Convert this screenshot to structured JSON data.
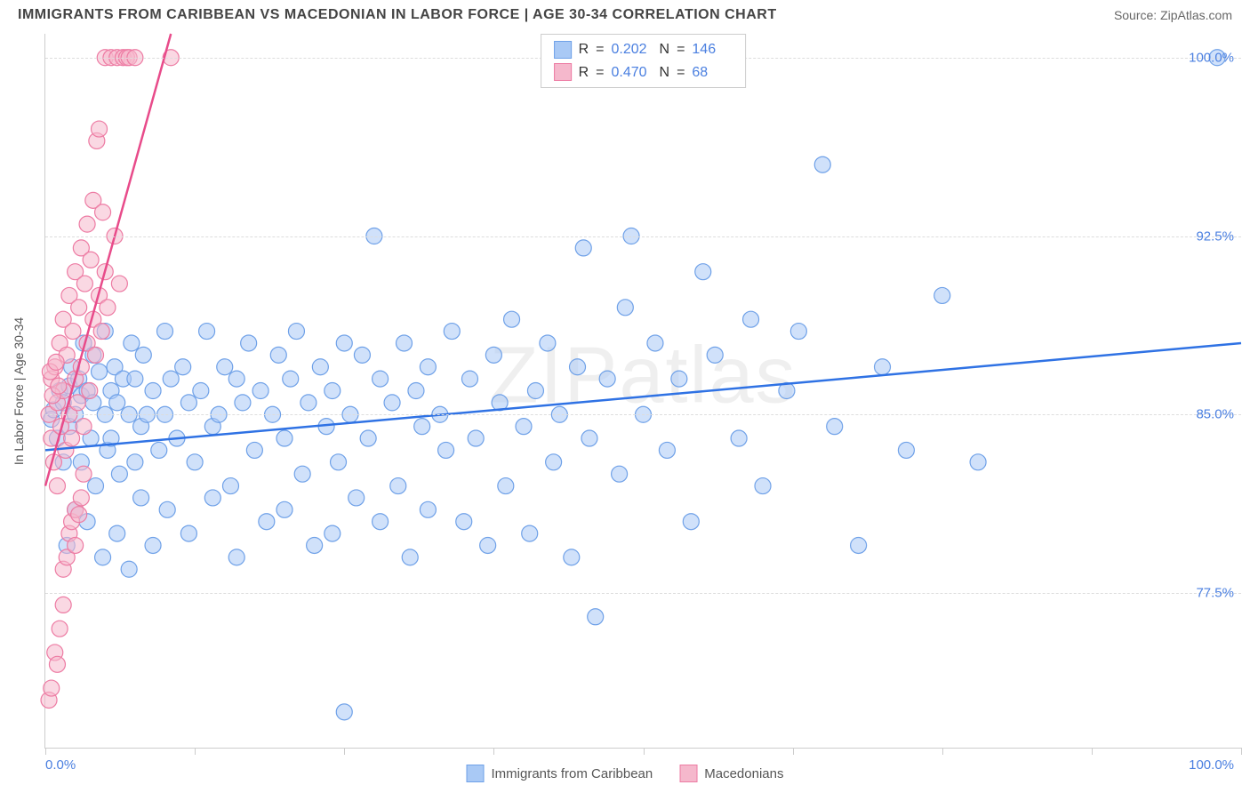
{
  "title": "IMMIGRANTS FROM CARIBBEAN VS MACEDONIAN IN LABOR FORCE | AGE 30-34 CORRELATION CHART",
  "source": "Source: ZipAtlas.com",
  "watermark": "ZIPatlas",
  "ylabel": "In Labor Force | Age 30-34",
  "chart": {
    "type": "scatter",
    "xlim": [
      0,
      100
    ],
    "ylim": [
      71,
      101
    ],
    "x_tick_positions": [
      0,
      12.5,
      25,
      37.5,
      50,
      62.5,
      75,
      87.5,
      100
    ],
    "x_tick_labels": {
      "0": "0.0%",
      "100": "100.0%"
    },
    "y_gridlines": [
      77.5,
      85.0,
      92.5,
      100.0
    ],
    "y_tick_labels": [
      "77.5%",
      "85.0%",
      "92.5%",
      "100.0%"
    ],
    "background_color": "#ffffff",
    "grid_color": "#dddddd",
    "marker_radius": 9,
    "marker_stroke_width": 1.2,
    "trend_line_width": 2.5
  },
  "series": [
    {
      "name": "Immigrants from Caribbean",
      "fill": "#a9c9f5",
      "stroke": "#6fa1e8",
      "fill_opacity": 0.55,
      "R": "0.202",
      "N": "146",
      "trend": {
        "x1": 0,
        "y1": 83.5,
        "x2": 100,
        "y2": 88.0,
        "color": "#2f72e4"
      },
      "points": [
        [
          0.5,
          84.8
        ],
        [
          0.7,
          85.2
        ],
        [
          1,
          84.0
        ],
        [
          1.2,
          86.0
        ],
        [
          1.5,
          83.0
        ],
        [
          1.5,
          85.5
        ],
        [
          1.8,
          79.5
        ],
        [
          2,
          86.2
        ],
        [
          2,
          84.5
        ],
        [
          2.2,
          87.0
        ],
        [
          2.5,
          85.0
        ],
        [
          2.5,
          81.0
        ],
        [
          2.8,
          86.5
        ],
        [
          3,
          85.8
        ],
        [
          3,
          83.0
        ],
        [
          3.2,
          88.0
        ],
        [
          3.5,
          80.5
        ],
        [
          3.5,
          86.0
        ],
        [
          3.8,
          84.0
        ],
        [
          4,
          85.5
        ],
        [
          4,
          87.5
        ],
        [
          4.2,
          82.0
        ],
        [
          4.5,
          86.8
        ],
        [
          4.8,
          79.0
        ],
        [
          5,
          85.0
        ],
        [
          5,
          88.5
        ],
        [
          5.2,
          83.5
        ],
        [
          5.5,
          86.0
        ],
        [
          5.5,
          84.0
        ],
        [
          5.8,
          87.0
        ],
        [
          6,
          80.0
        ],
        [
          6,
          85.5
        ],
        [
          6.2,
          82.5
        ],
        [
          6.5,
          86.5
        ],
        [
          7,
          78.5
        ],
        [
          7,
          85.0
        ],
        [
          7.2,
          88.0
        ],
        [
          7.5,
          83.0
        ],
        [
          7.5,
          86.5
        ],
        [
          8,
          84.5
        ],
        [
          8,
          81.5
        ],
        [
          8.2,
          87.5
        ],
        [
          8.5,
          85.0
        ],
        [
          9,
          79.5
        ],
        [
          9,
          86.0
        ],
        [
          9.5,
          83.5
        ],
        [
          10,
          88.5
        ],
        [
          10,
          85.0
        ],
        [
          10.2,
          81.0
        ],
        [
          10.5,
          86.5
        ],
        [
          11,
          84.0
        ],
        [
          11.5,
          87.0
        ],
        [
          12,
          80.0
        ],
        [
          12,
          85.5
        ],
        [
          12.5,
          83.0
        ],
        [
          13,
          86.0
        ],
        [
          13.5,
          88.5
        ],
        [
          14,
          84.5
        ],
        [
          14,
          81.5
        ],
        [
          14.5,
          85.0
        ],
        [
          15,
          87.0
        ],
        [
          15.5,
          82.0
        ],
        [
          16,
          86.5
        ],
        [
          16,
          79.0
        ],
        [
          16.5,
          85.5
        ],
        [
          17,
          88.0
        ],
        [
          17.5,
          83.5
        ],
        [
          18,
          86.0
        ],
        [
          18.5,
          80.5
        ],
        [
          19,
          85.0
        ],
        [
          19.5,
          87.5
        ],
        [
          20,
          84.0
        ],
        [
          20,
          81.0
        ],
        [
          20.5,
          86.5
        ],
        [
          21,
          88.5
        ],
        [
          21.5,
          82.5
        ],
        [
          22,
          85.5
        ],
        [
          22.5,
          79.5
        ],
        [
          23,
          87.0
        ],
        [
          23.5,
          84.5
        ],
        [
          24,
          80.0
        ],
        [
          24,
          86.0
        ],
        [
          24.5,
          83.0
        ],
        [
          25,
          88.0
        ],
        [
          25,
          72.5
        ],
        [
          25.5,
          85.0
        ],
        [
          26,
          81.5
        ],
        [
          26.5,
          87.5
        ],
        [
          27,
          84.0
        ],
        [
          27.5,
          92.5
        ],
        [
          28,
          80.5
        ],
        [
          28,
          86.5
        ],
        [
          29,
          85.5
        ],
        [
          29.5,
          82.0
        ],
        [
          30,
          88.0
        ],
        [
          30.5,
          79.0
        ],
        [
          31,
          86.0
        ],
        [
          31.5,
          84.5
        ],
        [
          32,
          81.0
        ],
        [
          32,
          87.0
        ],
        [
          33,
          85.0
        ],
        [
          33.5,
          83.5
        ],
        [
          34,
          88.5
        ],
        [
          35,
          80.5
        ],
        [
          35.5,
          86.5
        ],
        [
          36,
          84.0
        ],
        [
          37,
          79.5
        ],
        [
          37.5,
          87.5
        ],
        [
          38,
          85.5
        ],
        [
          38.5,
          82.0
        ],
        [
          39,
          89.0
        ],
        [
          40,
          84.5
        ],
        [
          40.5,
          80.0
        ],
        [
          41,
          86.0
        ],
        [
          42,
          88.0
        ],
        [
          42.5,
          83.0
        ],
        [
          43,
          85.0
        ],
        [
          44,
          79.0
        ],
        [
          44.5,
          87.0
        ],
        [
          45,
          92.0
        ],
        [
          45.5,
          84.0
        ],
        [
          46,
          76.5
        ],
        [
          47,
          86.5
        ],
        [
          48,
          82.5
        ],
        [
          48.5,
          89.5
        ],
        [
          49,
          92.5
        ],
        [
          50,
          85.0
        ],
        [
          51,
          88.0
        ],
        [
          52,
          83.5
        ],
        [
          53,
          86.5
        ],
        [
          54,
          80.5
        ],
        [
          55,
          91.0
        ],
        [
          56,
          87.5
        ],
        [
          58,
          84.0
        ],
        [
          59,
          89.0
        ],
        [
          60,
          82.0
        ],
        [
          62,
          86.0
        ],
        [
          63,
          88.5
        ],
        [
          65,
          95.5
        ],
        [
          66,
          84.5
        ],
        [
          68,
          79.5
        ],
        [
          70,
          87.0
        ],
        [
          72,
          83.5
        ],
        [
          75,
          90.0
        ],
        [
          78,
          83.0
        ],
        [
          98,
          100.0
        ]
      ]
    },
    {
      "name": "Macedonians",
      "fill": "#f5b8cc",
      "stroke": "#ed7ba3",
      "fill_opacity": 0.55,
      "R": "0.470",
      "N": "68",
      "trend": {
        "x1": 0,
        "y1": 82.0,
        "x2": 10.5,
        "y2": 101.0,
        "color": "#e84b8a"
      },
      "points": [
        [
          0.3,
          85.0
        ],
        [
          0.5,
          84.0
        ],
        [
          0.5,
          86.5
        ],
        [
          0.7,
          83.0
        ],
        [
          0.8,
          87.0
        ],
        [
          1.0,
          85.5
        ],
        [
          1.0,
          82.0
        ],
        [
          1.2,
          88.0
        ],
        [
          1.3,
          84.5
        ],
        [
          1.5,
          86.0
        ],
        [
          1.5,
          89.0
        ],
        [
          1.7,
          83.5
        ],
        [
          1.8,
          87.5
        ],
        [
          2.0,
          85.0
        ],
        [
          2.0,
          90.0
        ],
        [
          2.2,
          84.0
        ],
        [
          2.3,
          88.5
        ],
        [
          2.5,
          86.5
        ],
        [
          2.5,
          91.0
        ],
        [
          2.7,
          85.5
        ],
        [
          2.8,
          89.5
        ],
        [
          3.0,
          87.0
        ],
        [
          3.0,
          92.0
        ],
        [
          3.2,
          84.5
        ],
        [
          3.3,
          90.5
        ],
        [
          3.5,
          88.0
        ],
        [
          3.5,
          93.0
        ],
        [
          3.7,
          86.0
        ],
        [
          3.8,
          91.5
        ],
        [
          4.0,
          89.0
        ],
        [
          4.0,
          94.0
        ],
        [
          4.2,
          87.5
        ],
        [
          4.3,
          96.5
        ],
        [
          4.5,
          90.0
        ],
        [
          4.5,
          97.0
        ],
        [
          4.7,
          88.5
        ],
        [
          4.8,
          93.5
        ],
        [
          5.0,
          91.0
        ],
        [
          5.0,
          100.0
        ],
        [
          5.2,
          89.5
        ],
        [
          5.5,
          100.0
        ],
        [
          5.8,
          92.5
        ],
        [
          6.0,
          100.0
        ],
        [
          6.2,
          90.5
        ],
        [
          6.5,
          100.0
        ],
        [
          6.8,
          100.0
        ],
        [
          7.0,
          100.0
        ],
        [
          7.5,
          100.0
        ],
        [
          10.5,
          100.0
        ],
        [
          0.3,
          73.0
        ],
        [
          0.5,
          73.5
        ],
        [
          0.8,
          75.0
        ],
        [
          1.0,
          74.5
        ],
        [
          1.2,
          76.0
        ],
        [
          1.5,
          77.0
        ],
        [
          1.5,
          78.5
        ],
        [
          1.8,
          79.0
        ],
        [
          2.0,
          80.0
        ],
        [
          2.2,
          80.5
        ],
        [
          2.5,
          81.0
        ],
        [
          2.5,
          79.5
        ],
        [
          2.8,
          80.8
        ],
        [
          3.0,
          81.5
        ],
        [
          3.2,
          82.5
        ],
        [
          0.4,
          86.8
        ],
        [
          0.6,
          85.8
        ],
        [
          0.9,
          87.2
        ],
        [
          1.1,
          86.2
        ]
      ]
    }
  ],
  "bottom_legend": [
    {
      "label": "Immigrants from Caribbean",
      "fill": "#a9c9f5",
      "stroke": "#6fa1e8"
    },
    {
      "label": "Macedonians",
      "fill": "#f5b8cc",
      "stroke": "#ed7ba3"
    }
  ]
}
